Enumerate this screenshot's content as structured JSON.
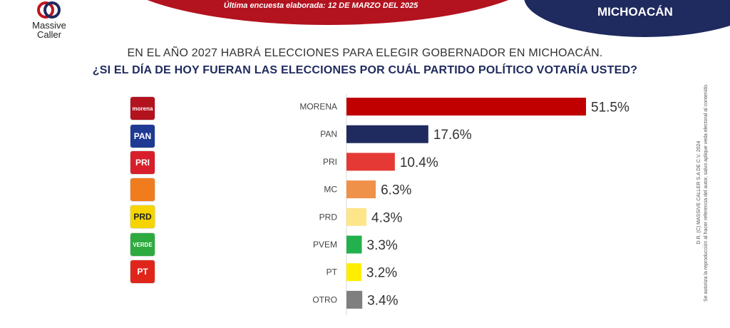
{
  "header": {
    "survey_date": "Última encuesta elaborada: 12 DE MARZO DEL 2025",
    "region": "MICHOACÁN",
    "brand_line1": "Massive",
    "brand_line2": "Caller"
  },
  "question": {
    "line1": "EN EL AÑO 2027 HABRÁ ELECCIONES PARA ELEGIR GOBERNADOR EN MICHOACÁN.",
    "line2": "¿SI EL DÍA DE HOY FUERAN LAS ELECCIONES POR CUÁL PARTIDO POLÍTICO VOTARÍA USTED?"
  },
  "side_note": {
    "line1": "D.R. (C) MASSIVE CALLER S.A DE C.V. 2024",
    "line2": "Se autoriza la reproducción al hacer referencia del autor, salvo aplique veda electoral al contenido."
  },
  "party_icons": [
    {
      "icon": "morena-logo-icon",
      "label": "morena",
      "color": "#b3121f"
    },
    {
      "icon": "pan-logo-icon",
      "label": "PAN",
      "color": "#1f3a93"
    },
    {
      "icon": "pri-logo-icon",
      "label": "PRI",
      "color": "#d81e2a"
    },
    {
      "icon": "mc-logo-icon",
      "label": "",
      "color": "#f07c1e"
    },
    {
      "icon": "prd-logo-icon",
      "label": "PRD",
      "color": "#f5d400"
    },
    {
      "icon": "verde-logo-icon",
      "label": "VERDE",
      "color": "#2eaa3f"
    },
    {
      "icon": "pt-logo-icon",
      "label": "PT",
      "color": "#e0251b"
    }
  ],
  "chart_data": {
    "type": "bar",
    "orientation": "horizontal",
    "categories": [
      "MORENA",
      "PAN",
      "PRI",
      "MC",
      "PRD",
      "PVEM",
      "PT",
      "OTRO"
    ],
    "values": [
      51.5,
      17.6,
      10.4,
      6.3,
      4.3,
      3.3,
      3.2,
      3.4
    ],
    "value_labels": [
      "51.5%",
      "17.6%",
      "10.4%",
      "6.3%",
      "4.3%",
      "3.3%",
      "3.2%",
      "3.4%"
    ],
    "colors": [
      "#c00000",
      "#1f2a5e",
      "#e53935",
      "#f0914a",
      "#fde58a",
      "#22b14c",
      "#ffee00",
      "#7f7f7f"
    ],
    "xlim": [
      0,
      51.5
    ],
    "grid": false
  }
}
